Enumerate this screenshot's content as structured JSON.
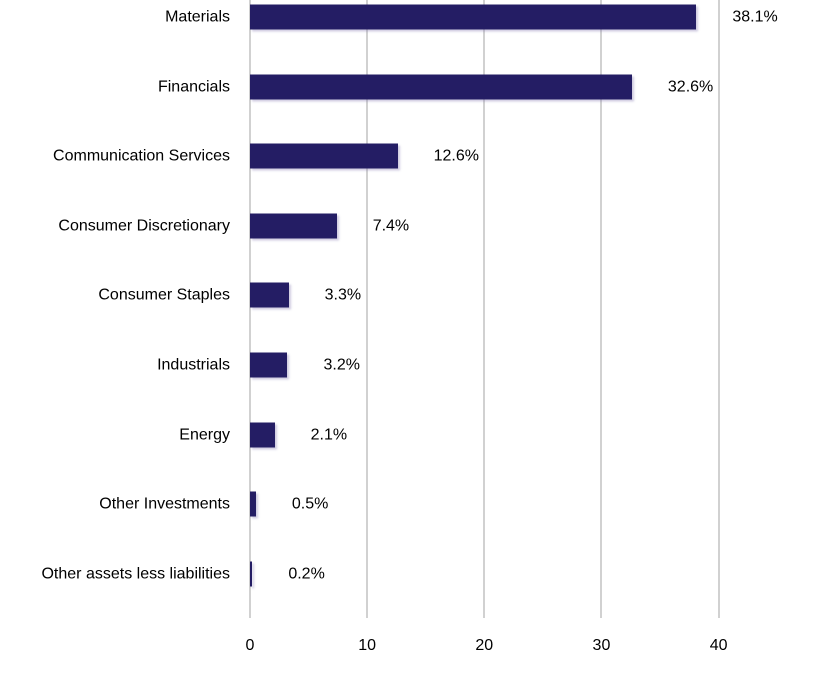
{
  "chart_data": {
    "type": "bar",
    "orientation": "horizontal",
    "title": "",
    "xlabel": "",
    "ylabel": "",
    "xlim": [
      0,
      40
    ],
    "x_ticks": [
      "0",
      "10",
      "20",
      "30",
      "40"
    ],
    "grid": "vertical-only",
    "legend": "none",
    "bar_color": "#241d64",
    "gridline_color": "#d1d1d1",
    "text_color": "#000000",
    "categories": [
      "Materials",
      "Financials",
      "Communication Services",
      "Consumer Discretionary",
      "Consumer Staples",
      "Industrials",
      "Energy",
      "Other Investments",
      "Other assets less liabilities"
    ],
    "values": [
      38.1,
      32.6,
      12.6,
      7.4,
      3.3,
      3.2,
      2.1,
      0.5,
      0.2
    ],
    "value_labels": [
      "38.1%",
      "32.6%",
      "12.6%",
      "7.4%",
      "3.3%",
      "3.2%",
      "2.1%",
      "0.5%",
      "0.2%"
    ]
  }
}
